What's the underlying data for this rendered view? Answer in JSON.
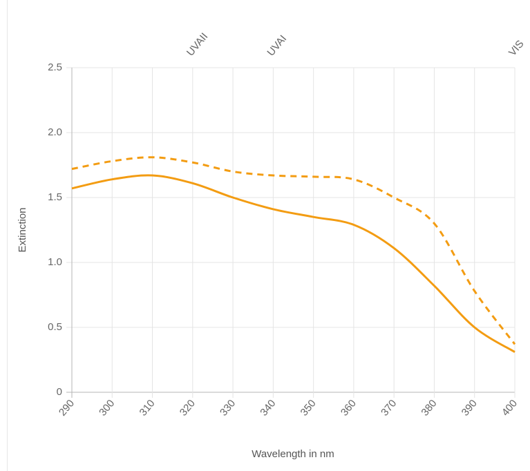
{
  "chart_data": {
    "type": "line",
    "xlabel": "Wavelength in nm",
    "ylabel": "Extinction",
    "xlim": [
      290,
      400
    ],
    "ylim": [
      0,
      2.5
    ],
    "x_ticks": [
      "290",
      "300",
      "310",
      "320",
      "330",
      "340",
      "350",
      "360",
      "370",
      "380",
      "390",
      "400"
    ],
    "y_ticks": [
      "0",
      "0.5",
      "1.0",
      "1.5",
      "2.0",
      "2.5"
    ],
    "grid": true,
    "band_labels": [
      {
        "text": "UVAII",
        "x": 320
      },
      {
        "text": "UVAI",
        "x": 340
      },
      {
        "text": "VIS",
        "x": 400
      }
    ],
    "series": [
      {
        "style": "dashed",
        "color": "#f39c12",
        "x": [
          290,
          300,
          310,
          320,
          330,
          340,
          350,
          360,
          370,
          380,
          390,
          400
        ],
        "y": [
          1.72,
          1.78,
          1.81,
          1.77,
          1.7,
          1.67,
          1.66,
          1.64,
          1.5,
          1.3,
          0.78,
          0.37
        ]
      },
      {
        "style": "solid",
        "color": "#f39c12",
        "x": [
          290,
          300,
          310,
          320,
          330,
          340,
          350,
          360,
          370,
          380,
          390,
          400
        ],
        "y": [
          1.57,
          1.64,
          1.67,
          1.61,
          1.5,
          1.41,
          1.35,
          1.29,
          1.11,
          0.82,
          0.5,
          0.31
        ]
      }
    ]
  }
}
